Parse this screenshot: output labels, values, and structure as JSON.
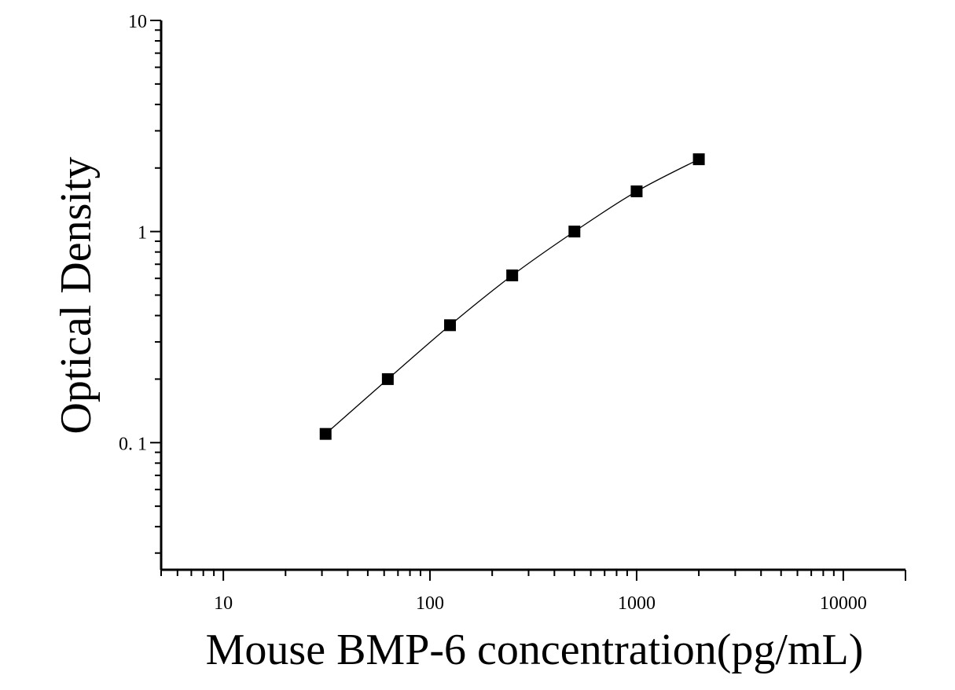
{
  "chart_data": {
    "type": "scatter",
    "x_scale": "log",
    "y_scale": "log",
    "xlabel": "Mouse BMP-6 concentration(pg/mL)",
    "ylabel": "Optical Density",
    "xlim": [
      5,
      20000
    ],
    "ylim": [
      0.025,
      10
    ],
    "x_tick_labels": [
      {
        "value": 10,
        "label": "10"
      },
      {
        "value": 100,
        "label": "100"
      },
      {
        "value": 1000,
        "label": "1000"
      },
      {
        "value": 10000,
        "label": "10000"
      }
    ],
    "y_tick_labels": [
      {
        "value": 0.1,
        "label": "0. 1"
      },
      {
        "value": 1,
        "label": "1"
      },
      {
        "value": 10,
        "label": "10"
      }
    ],
    "series": [
      {
        "x": [
          31.25,
          62.5,
          125,
          250,
          500,
          1000,
          2000
        ],
        "y": [
          0.11,
          0.2,
          0.36,
          0.62,
          1.0,
          1.55,
          2.2
        ],
        "marker": "square",
        "fit_line": true
      }
    ],
    "grid": false,
    "colors": {
      "marker": "#000000",
      "line": "#000000",
      "axis": "#000000"
    }
  }
}
